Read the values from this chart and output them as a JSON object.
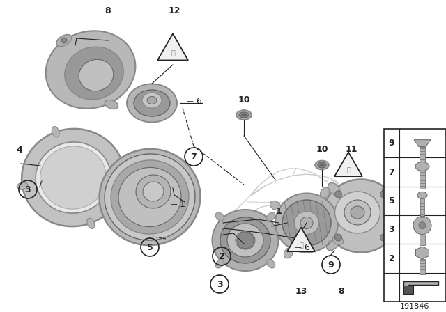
{
  "bg_color": "#ffffff",
  "part_number": "191846",
  "gray_light": "#c8c8c8",
  "gray_mid": "#aaaaaa",
  "gray_dark": "#888888",
  "gray_darker": "#666666",
  "line_color": "#222222",
  "car_color": "#dddddd"
}
